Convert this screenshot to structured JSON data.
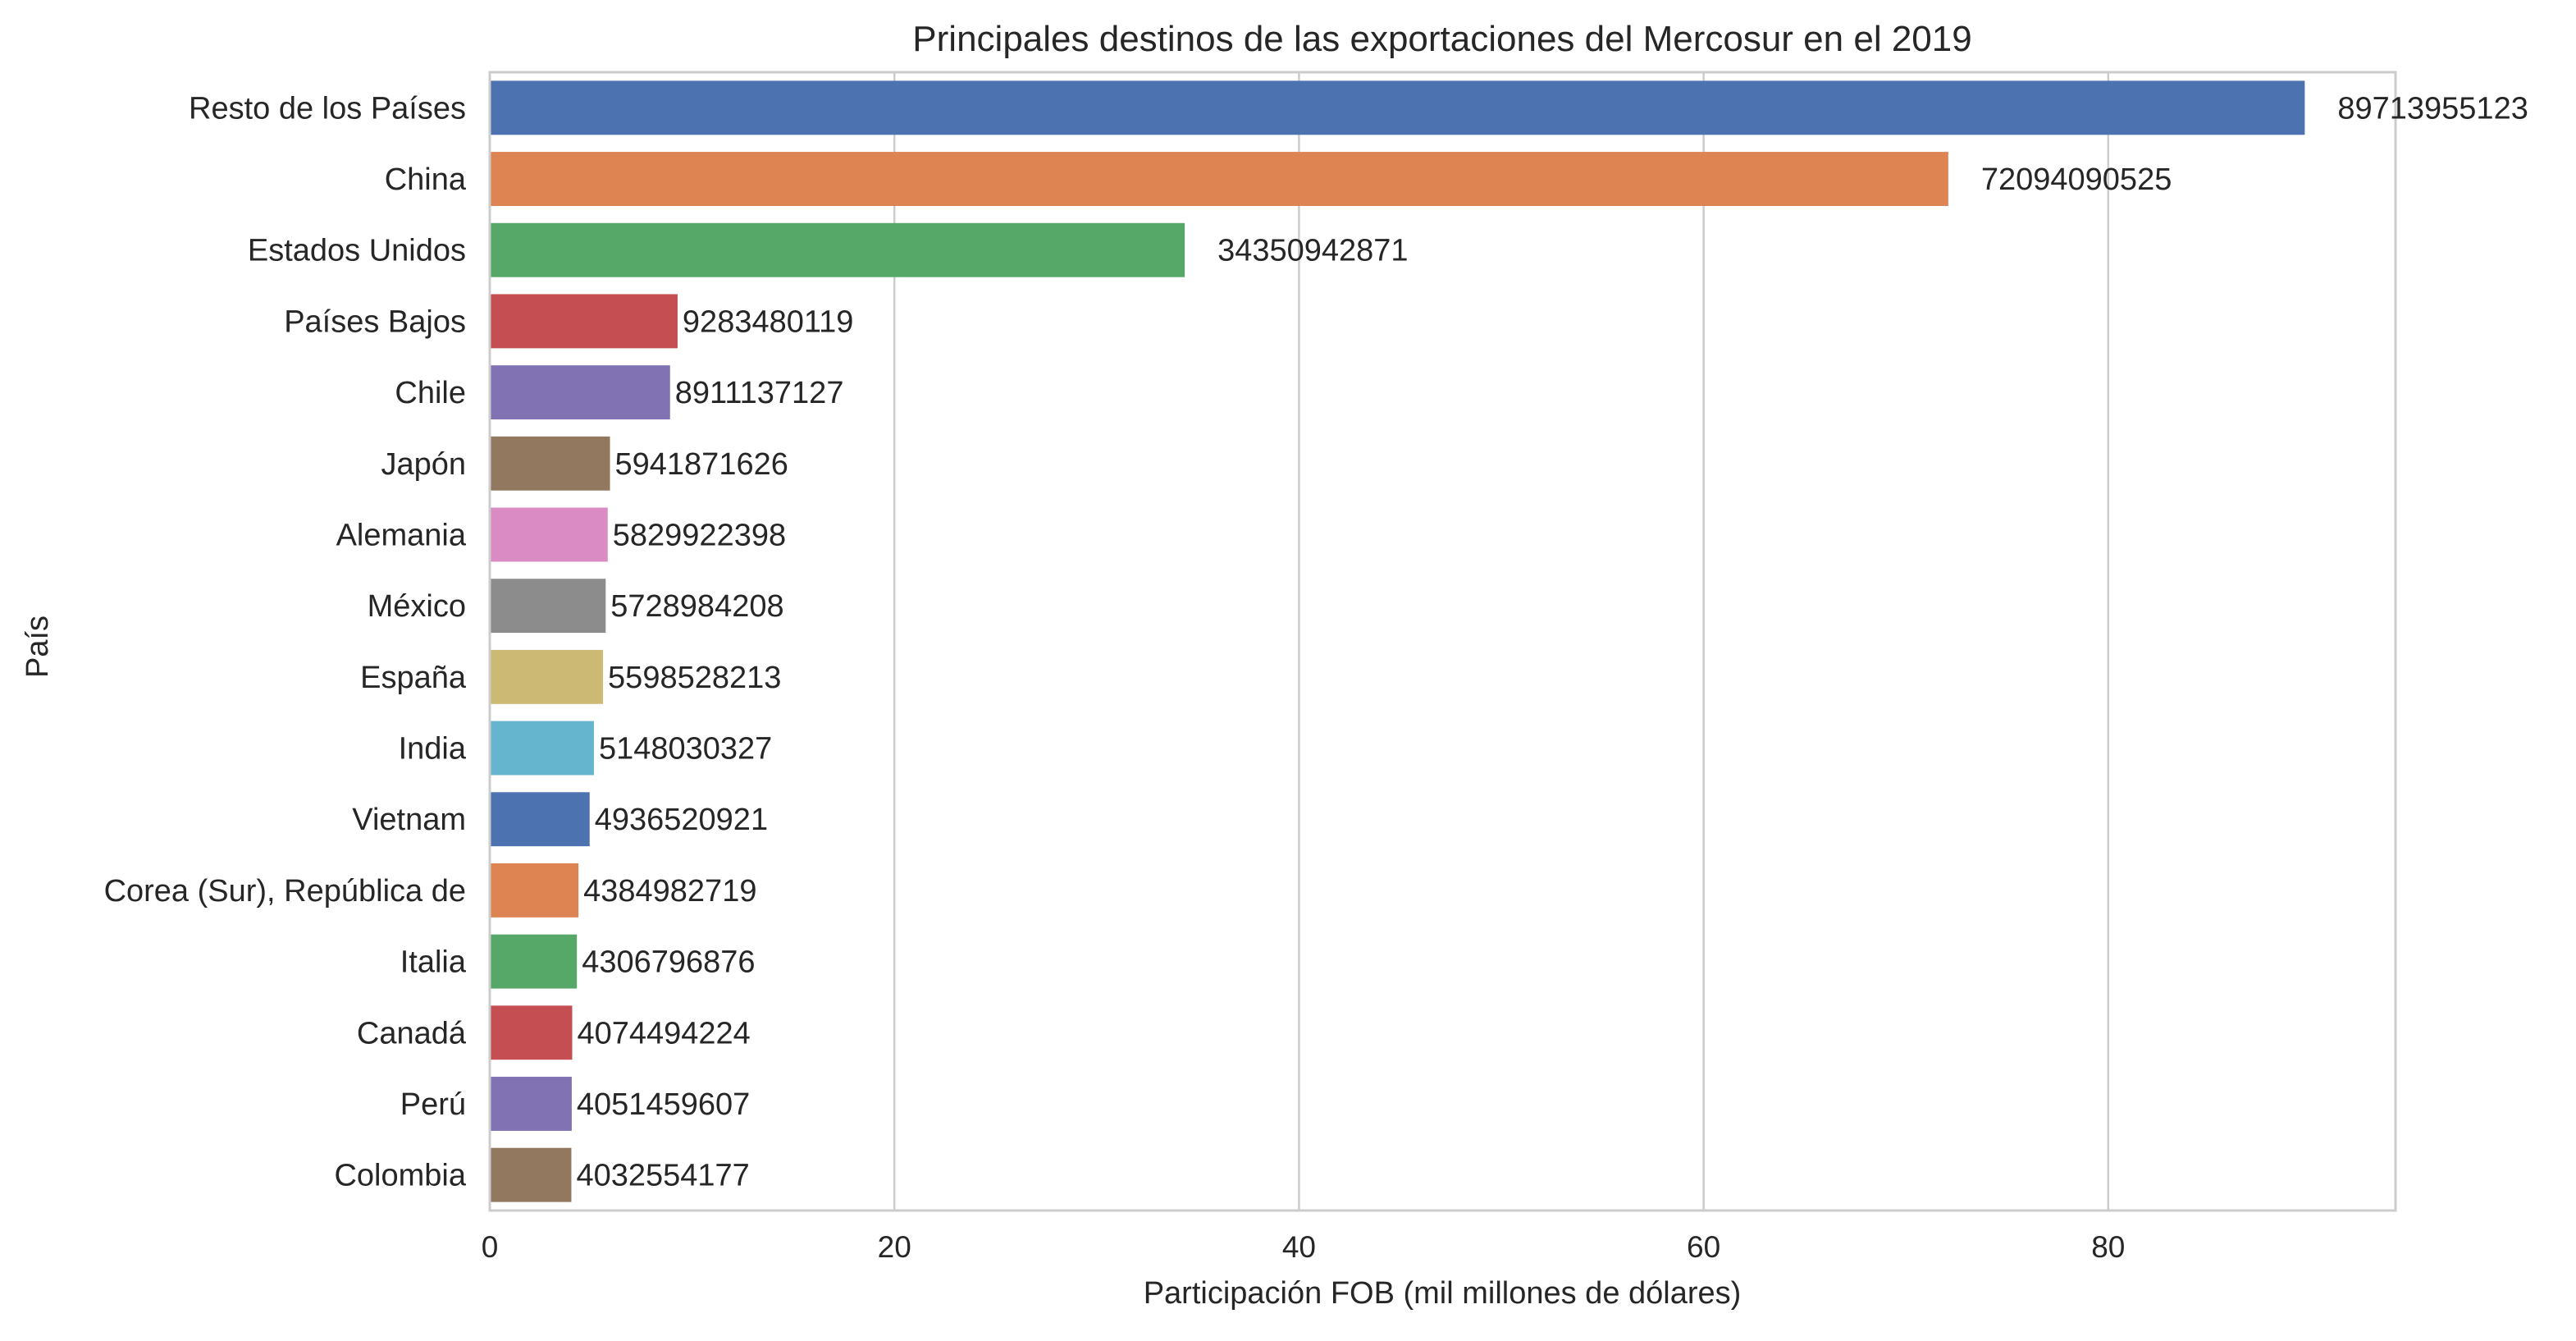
{
  "chart_data": {
    "type": "bar",
    "orientation": "horizontal",
    "title": "Principales destinos de las exportaciones del Mercosur en el 2019",
    "xlabel": "Participación FOB (mil millones de dólares)",
    "ylabel": "País",
    "xlim": [
      0,
      94.2
    ],
    "xticks": [
      0,
      20,
      40,
      60,
      80
    ],
    "grid": "vertical",
    "categories": [
      "Resto de los Países",
      "China",
      "Estados Unidos",
      "Países Bajos",
      "Chile",
      "Japón",
      "Alemania",
      "México",
      "España",
      "India",
      "Vietnam",
      "Corea (Sur), República de",
      "Italia",
      "Canadá",
      "Perú",
      "Colombia"
    ],
    "values": [
      89.713955123,
      72.094090525,
      34.350942871,
      9.283480119,
      8.911137127,
      5.941871626,
      5.829922398,
      5.728984208,
      5.598528213,
      5.148030327,
      4.936520921,
      4.384982719,
      4.306796876,
      4.074494224,
      4.051459607,
      4.032554177
    ],
    "data_labels": [
      "89713955123",
      "72094090525",
      "34350942871",
      "9283480119",
      "8911137127",
      "5941871626",
      "5829922398",
      "5728984208",
      "5598528213",
      "5148030327",
      "4936520921",
      "4384982719",
      "4306796876",
      "4074494224",
      "4051459607",
      "4032554177"
    ],
    "colors": [
      "#4c72b0",
      "#dd8452",
      "#55a868",
      "#c44e52",
      "#8172b3",
      "#937860",
      "#da8bc3",
      "#8c8c8c",
      "#ccb974",
      "#64b5cd"
    ],
    "grid_color": "#cccccc",
    "axis_color": "#cccccc"
  }
}
